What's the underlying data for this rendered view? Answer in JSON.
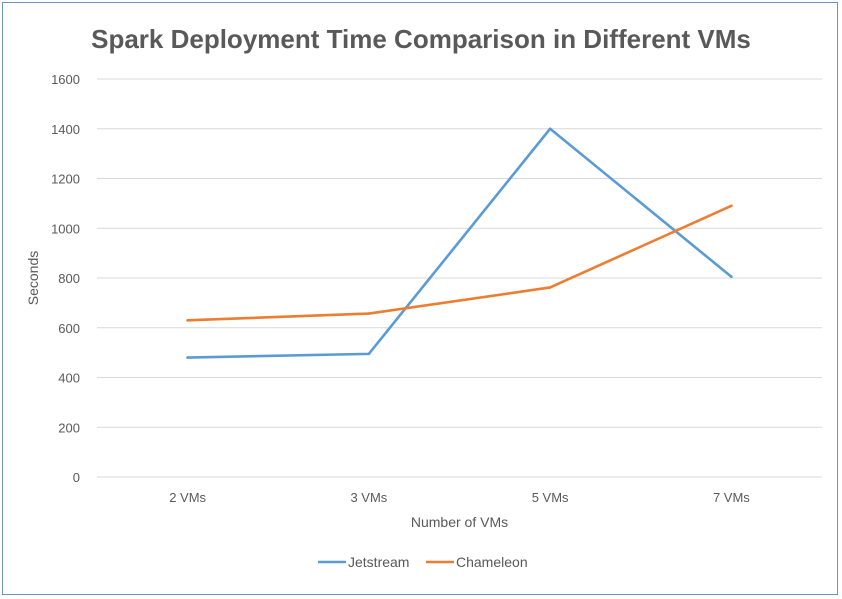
{
  "chart_data": {
    "type": "line",
    "title": "Spark Deployment Time Comparison in Different VMs",
    "xlabel": "Number of VMs",
    "ylabel": "Seconds",
    "categories": [
      "2 VMs",
      "3 VMs",
      "5 VMs",
      "7 VMs"
    ],
    "ylim": [
      0,
      1600
    ],
    "yticks": [
      0,
      200,
      400,
      600,
      800,
      1000,
      1200,
      1400,
      1600
    ],
    "grid": true,
    "legend_position": "bottom",
    "series": [
      {
        "name": "Jetstream",
        "color": "#5b9bd5",
        "values": [
          480,
          495,
          1400,
          805
        ]
      },
      {
        "name": "Chameleon",
        "color": "#ed7d31",
        "values": [
          630,
          657,
          762,
          1090
        ]
      }
    ]
  }
}
